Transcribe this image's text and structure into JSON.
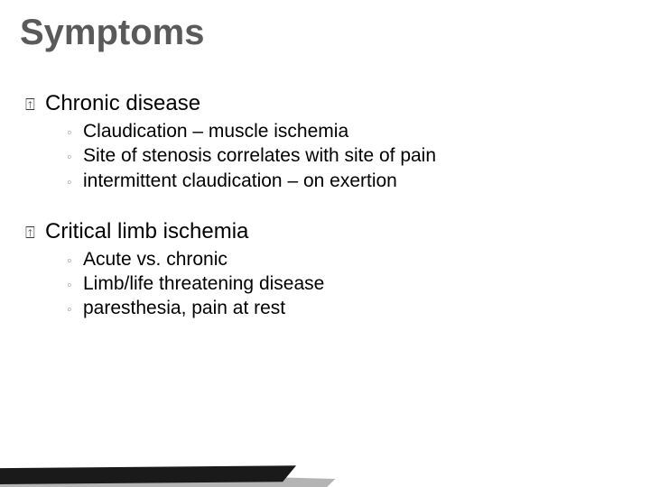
{
  "title": "Symptoms",
  "colors": {
    "title": "#5a5a5a",
    "body_text": "#000000",
    "top_bullet": "#3a3a3a",
    "sub_bullet": "#9a9a9a",
    "background": "#ffffff",
    "shard_dark": "#1a1a1a",
    "shard_grey": "#b4b4b4"
  },
  "typography": {
    "title_fontsize": 40,
    "title_weight": "bold",
    "title_family": "Trebuchet MS",
    "top_fontsize": 24,
    "sub_fontsize": 21,
    "body_family": "Lucida Sans Unicode"
  },
  "bullets": {
    "top_glyph": "⍐",
    "sub_glyph": "◦"
  },
  "outline": [
    {
      "label": "Chronic disease",
      "subs": [
        "Claudication – muscle ischemia",
        "Site of stenosis correlates with site of pain",
        "intermittent claudication – on exertion"
      ]
    },
    {
      "label": "Critical limb ischemia",
      "subs": [
        "Acute vs. chronic",
        "Limb/life threatening disease",
        "paresthesia, pain at rest"
      ]
    }
  ]
}
